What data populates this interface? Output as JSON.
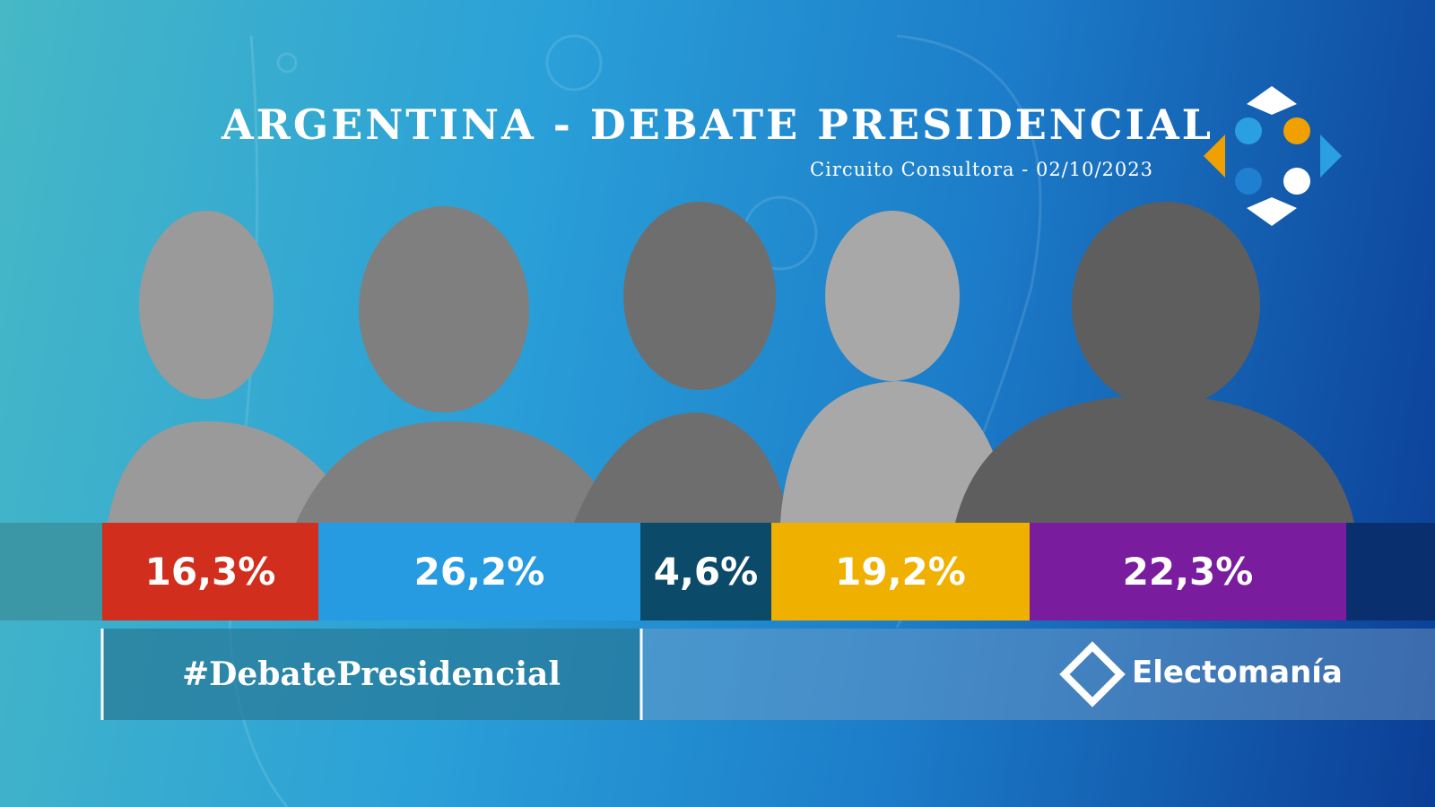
{
  "header": {
    "title": "ARGENTINA - DEBATE PRESIDENCIAL",
    "subtitle": "Circuito Consultora - 02/10/2023"
  },
  "results": [
    {
      "label": "16,3%",
      "color": "#d22e1e"
    },
    {
      "label": "26,2%",
      "color": "#279be2"
    },
    {
      "label": "4,6%",
      "color": "#0c4a69"
    },
    {
      "label": "19,2%",
      "color": "#f0b000"
    },
    {
      "label": "22,3%",
      "color": "#7a1c9e"
    }
  ],
  "footer": {
    "hashtag": "#DebatePresidencial",
    "brand": "Electomanía"
  }
}
